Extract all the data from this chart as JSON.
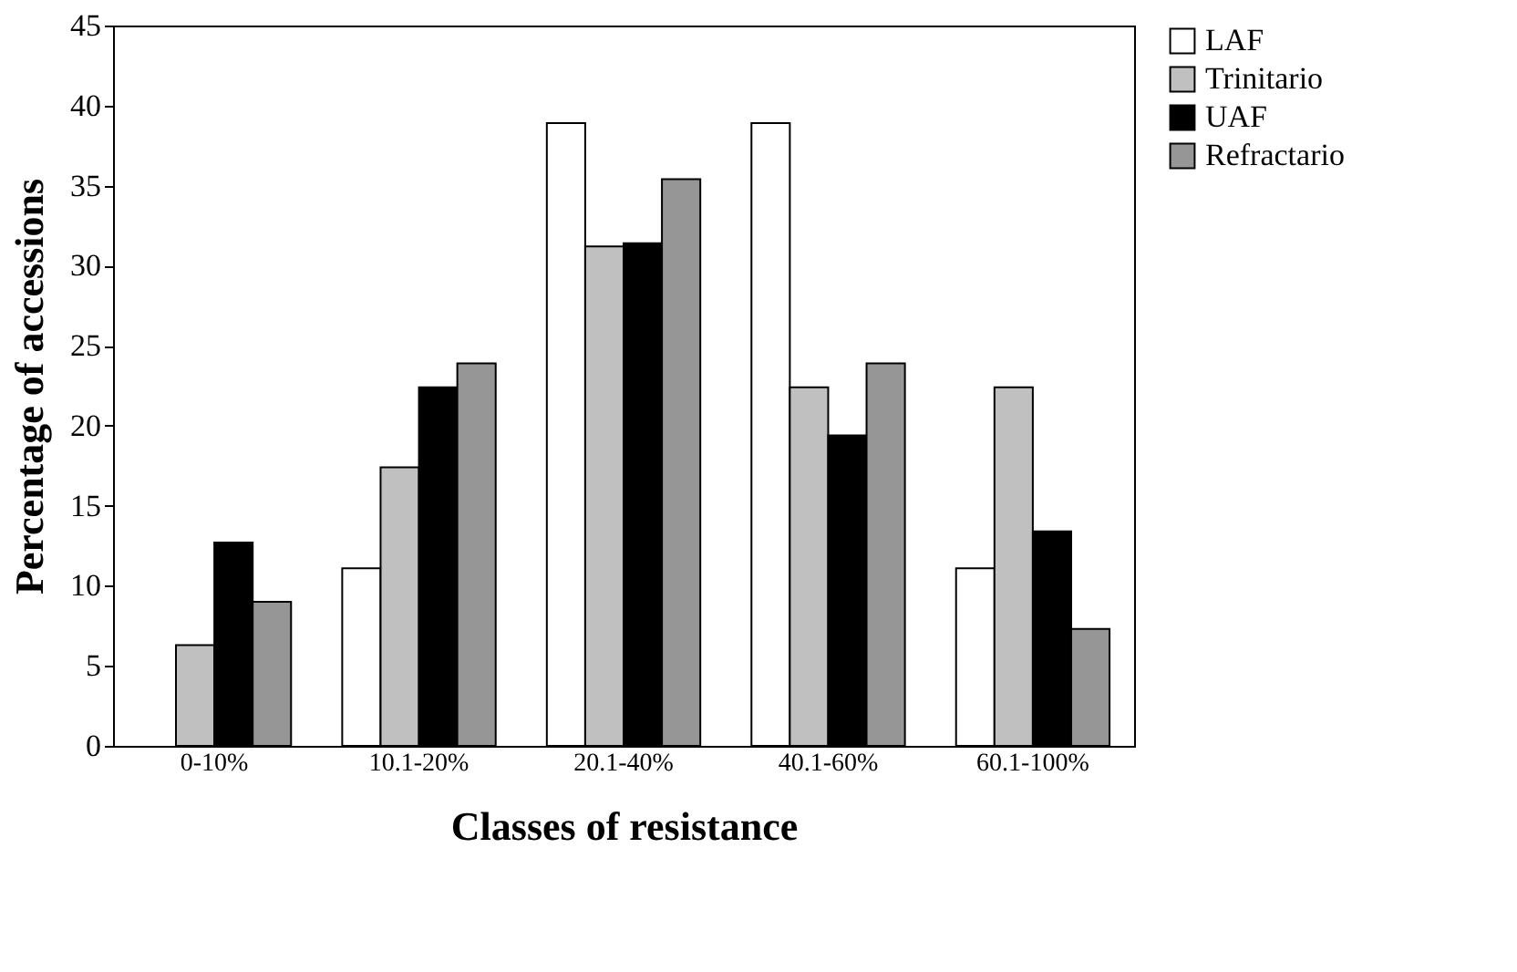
{
  "chart_data": {
    "type": "bar",
    "xlabel": "Classes of resistance",
    "ylabel": "Percentage of accessions",
    "categories": [
      "0-10%",
      "10.1-20%",
      "20.1-40%",
      "40.1-60%",
      "60.1-100%"
    ],
    "series": [
      {
        "name": "LAF",
        "color": "#ffffff",
        "values": [
          null,
          11.1,
          38.9,
          38.9,
          11.1
        ]
      },
      {
        "name": "Trinitario",
        "color": "#c0c0c0",
        "values": [
          6.3,
          17.4,
          31.2,
          22.4,
          22.4
        ]
      },
      {
        "name": "UAF",
        "color": "#000000",
        "values": [
          12.7,
          22.4,
          31.4,
          19.4,
          13.4
        ]
      },
      {
        "name": "Refractario",
        "color": "#969696",
        "values": [
          9.0,
          23.9,
          35.4,
          23.9,
          7.3
        ]
      }
    ],
    "ylim": [
      0,
      45
    ],
    "yticks": [
      0,
      5,
      10,
      15,
      20,
      25,
      30,
      35,
      40,
      45
    ],
    "grid": false,
    "legend": "right"
  }
}
